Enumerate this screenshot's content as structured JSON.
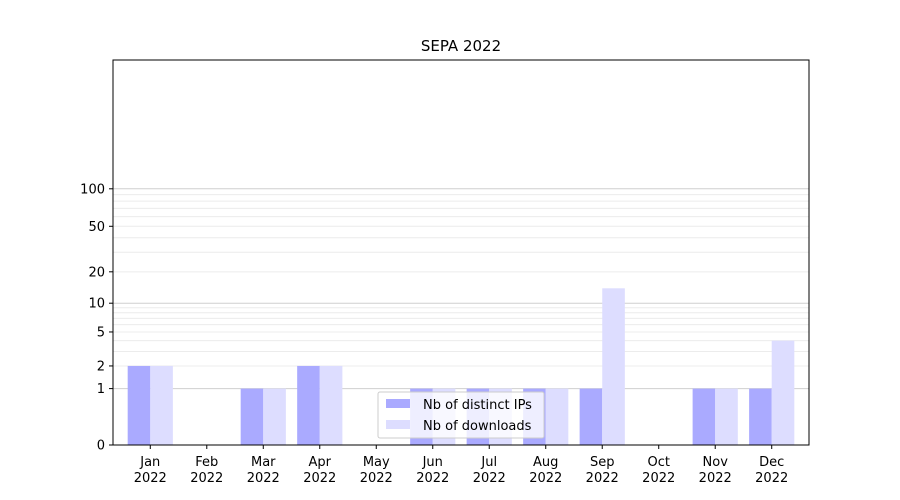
{
  "chart_data": {
    "type": "bar",
    "title": "SEPA 2022",
    "xlabel": "",
    "ylabel": "",
    "y_scale": "symlog",
    "ylim": [
      0,
      130
    ],
    "y_ticks": [
      0,
      1,
      2,
      5,
      10,
      20,
      50,
      100
    ],
    "y_tick_labels": [
      "0",
      "1",
      "2",
      "5",
      "10",
      "20",
      "50",
      "100"
    ],
    "grid": "horizontal",
    "legend_position": "bottom-center",
    "categories": [
      {
        "month": "Jan",
        "year": "2022"
      },
      {
        "month": "Feb",
        "year": "2022"
      },
      {
        "month": "Mar",
        "year": "2022"
      },
      {
        "month": "Apr",
        "year": "2022"
      },
      {
        "month": "May",
        "year": "2022"
      },
      {
        "month": "Jun",
        "year": "2022"
      },
      {
        "month": "Jul",
        "year": "2022"
      },
      {
        "month": "Aug",
        "year": "2022"
      },
      {
        "month": "Sep",
        "year": "2022"
      },
      {
        "month": "Oct",
        "year": "2022"
      },
      {
        "month": "Nov",
        "year": "2022"
      },
      {
        "month": "Dec",
        "year": "2022"
      }
    ],
    "series": [
      {
        "name": "Nb of distinct IPs",
        "color": "#aaaaff",
        "values": [
          2,
          0,
          1,
          2,
          0,
          1,
          1,
          1,
          1,
          0,
          1,
          1
        ]
      },
      {
        "name": "Nb of downloads",
        "color": "#ddddff",
        "values": [
          2,
          0,
          1,
          2,
          0,
          1,
          1,
          1,
          14,
          0,
          1,
          4
        ]
      }
    ]
  }
}
